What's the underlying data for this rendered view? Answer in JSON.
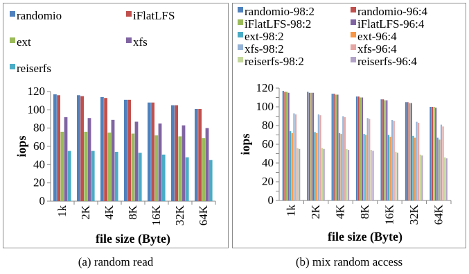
{
  "captions": {
    "a": "(a)  random read",
    "b": "(b)  mix random access"
  },
  "colors": {
    "randomio": "#4f81bd",
    "iFlatLFS": "#c0504d",
    "ext": "#9bbb59",
    "xfs": "#8064a2",
    "reiserfs": "#4bacc6",
    "randomio-98:2": "#4f81bd",
    "randomio-96:4": "#c0504d",
    "iFlatLFS-98:2": "#9bbb59",
    "iFlatLFS-96:4": "#8064a2",
    "ext-98:2": "#4bacc6",
    "ext-96:4": "#f79646",
    "xfs-98:2": "#95b3d7",
    "xfs-96:4": "#e6a6a4",
    "reiserfs-98:2": "#c4d79b",
    "reiserfs-96:4": "#b2a2c7"
  },
  "chart_data": [
    {
      "type": "bar",
      "categories": [
        "1k",
        "2K",
        "4K",
        "8K",
        "16K",
        "32K",
        "64K"
      ],
      "xlabel": "file size (Byte)",
      "ylabel": "iops",
      "ylim": [
        0,
        120
      ],
      "yticks": [
        0,
        20,
        40,
        60,
        80,
        100,
        120
      ],
      "grid": false,
      "legend_position": "top",
      "series": [
        {
          "name": "randomio",
          "values": [
            117,
            116,
            114,
            111,
            108,
            105,
            101
          ]
        },
        {
          "name": "iFlatLFS",
          "values": [
            116,
            115,
            113,
            111,
            108,
            105,
            101
          ]
        },
        {
          "name": "ext",
          "values": [
            76,
            76,
            75,
            74,
            72,
            71,
            69
          ]
        },
        {
          "name": "xfs",
          "values": [
            92,
            91,
            89,
            87,
            85,
            83,
            80
          ]
        },
        {
          "name": "reiserfs",
          "values": [
            55,
            55,
            54,
            53,
            51,
            48,
            45
          ]
        }
      ]
    },
    {
      "type": "bar",
      "categories": [
        "1k",
        "2K",
        "4K",
        "8K",
        "16K",
        "32K",
        "64K"
      ],
      "xlabel": "file size (Byte)",
      "ylabel": "iops",
      "ylim": [
        0,
        120
      ],
      "yticks": [
        0,
        10,
        20,
        30,
        40,
        50,
        60,
        70,
        80,
        90,
        100,
        110,
        120
      ],
      "ytick_labels": [
        "0",
        "",
        "20",
        "",
        "40",
        "",
        "60",
        "",
        "80",
        "",
        "100",
        "",
        "120"
      ],
      "grid": false,
      "legend_position": "top",
      "series": [
        {
          "name": "randomio-98:2",
          "values": [
            117,
            116,
            114,
            111,
            108,
            105,
            100
          ]
        },
        {
          "name": "randomio-96:4",
          "values": [
            116,
            115,
            114,
            111,
            108,
            105,
            100
          ]
        },
        {
          "name": "iFlatLFS-98:2",
          "values": [
            116,
            115,
            113,
            110,
            107,
            104,
            100
          ]
        },
        {
          "name": "iFlatLFS-96:4",
          "values": [
            115,
            115,
            113,
            110,
            107,
            104,
            99
          ]
        },
        {
          "name": "ext-98:2",
          "values": [
            74,
            73,
            72,
            71,
            70,
            69,
            67
          ]
        },
        {
          "name": "ext-96:4",
          "values": [
            72,
            72,
            71,
            70,
            68,
            67,
            65
          ]
        },
        {
          "name": "xfs-98:2",
          "values": [
            93,
            92,
            90,
            88,
            86,
            84,
            81
          ]
        },
        {
          "name": "xfs-96:4",
          "values": [
            92,
            91,
            89,
            87,
            85,
            83,
            79
          ]
        },
        {
          "name": "reiserfs-98:2",
          "values": [
            56,
            56,
            55,
            54,
            52,
            49,
            46
          ]
        },
        {
          "name": "reiserfs-96:4",
          "values": [
            55,
            55,
            54,
            53,
            51,
            48,
            45
          ]
        }
      ]
    }
  ]
}
